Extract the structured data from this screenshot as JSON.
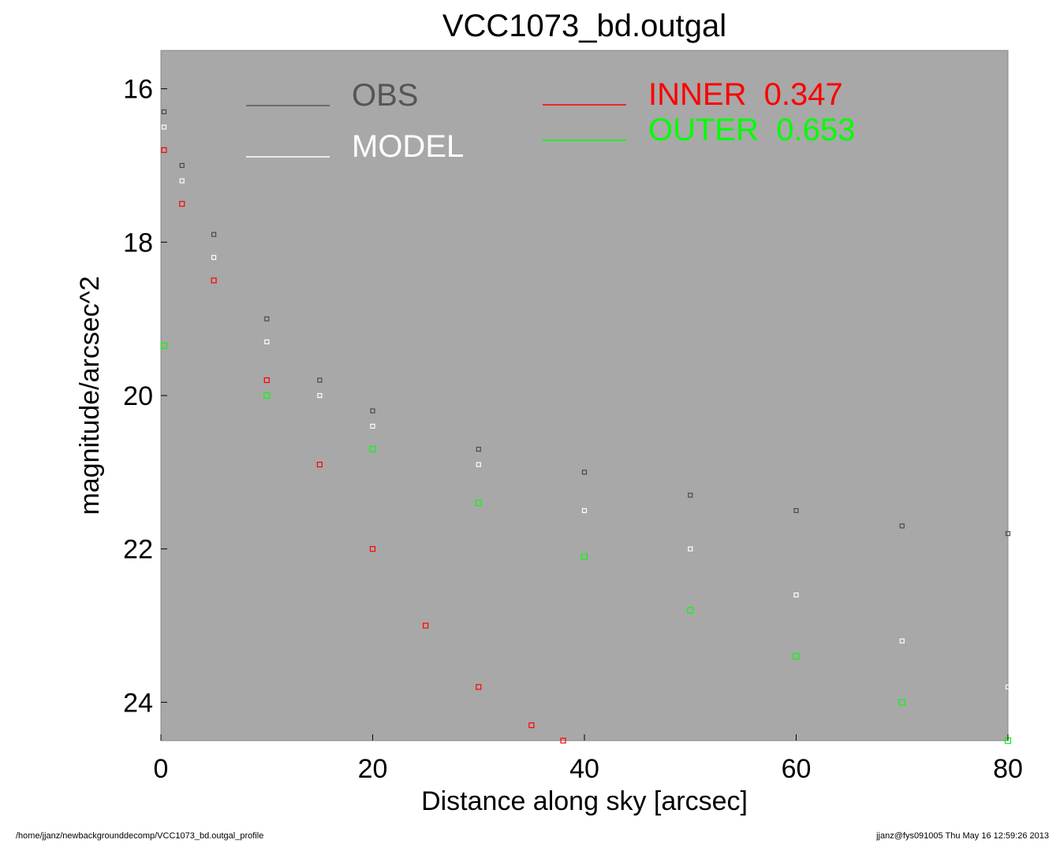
{
  "chart_data": {
    "type": "scatter",
    "title": "VCC1073_bd.outgal",
    "xlabel": "Distance along sky [arcsec]",
    "ylabel": "magnitude/arcsec^2",
    "xlim": [
      0,
      80
    ],
    "ylim": [
      24.5,
      15.5
    ],
    "y_inverted": true,
    "x_ticks": [
      0,
      20,
      40,
      60,
      80
    ],
    "y_ticks": [
      16,
      18,
      20,
      22,
      24
    ],
    "grid": false,
    "background_color": "#a8a8a8",
    "legend": [
      {
        "label": "OBS",
        "color": "#555555",
        "label_color": "#555555"
      },
      {
        "label": "MODEL",
        "color": "#ffffff",
        "label_color": "#ffffff"
      },
      {
        "label": "INNER",
        "value": "0.347",
        "color": "#ff0000",
        "label_color": "#ff0000"
      },
      {
        "label": "OUTER",
        "value": "0.653",
        "color": "#00ff00",
        "label_color": "#00ff00"
      }
    ],
    "series": [
      {
        "name": "OBS",
        "color": "#4a4a4a",
        "x": [
          0.3,
          2,
          5,
          10,
          15,
          20,
          30,
          40,
          50,
          60,
          70,
          80
        ],
        "y": [
          16.3,
          17.0,
          17.9,
          19.0,
          19.8,
          20.2,
          20.7,
          21.0,
          21.3,
          21.5,
          21.7,
          21.8
        ]
      },
      {
        "name": "MODEL",
        "color": "#ffffff",
        "x": [
          0.3,
          2,
          5,
          10,
          15,
          20,
          30,
          40,
          50,
          60,
          70,
          80
        ],
        "y": [
          16.5,
          17.2,
          18.2,
          19.3,
          20.0,
          20.4,
          20.9,
          21.5,
          22.0,
          22.6,
          23.2,
          23.8
        ]
      },
      {
        "name": "INNER",
        "color": "#ff0000",
        "x": [
          0.3,
          2,
          5,
          10,
          15,
          20,
          25,
          30,
          35,
          38
        ],
        "y": [
          16.8,
          17.5,
          18.5,
          19.8,
          20.9,
          22.0,
          23.0,
          23.8,
          24.3,
          24.5
        ]
      },
      {
        "name": "OUTER",
        "color": "#00ff00",
        "x": [
          0.3,
          10,
          20,
          30,
          40,
          50,
          60,
          70,
          80
        ],
        "y": [
          19.35,
          20.0,
          20.7,
          21.4,
          22.1,
          22.8,
          23.4,
          24.0,
          24.5
        ]
      }
    ]
  },
  "footer": {
    "left": "/home/jjanz/newbackgrounddecomp/VCC1073_bd.outgal_profile",
    "right": "jjanz@fys091005  Thu May 16 12:59:26 2013"
  }
}
